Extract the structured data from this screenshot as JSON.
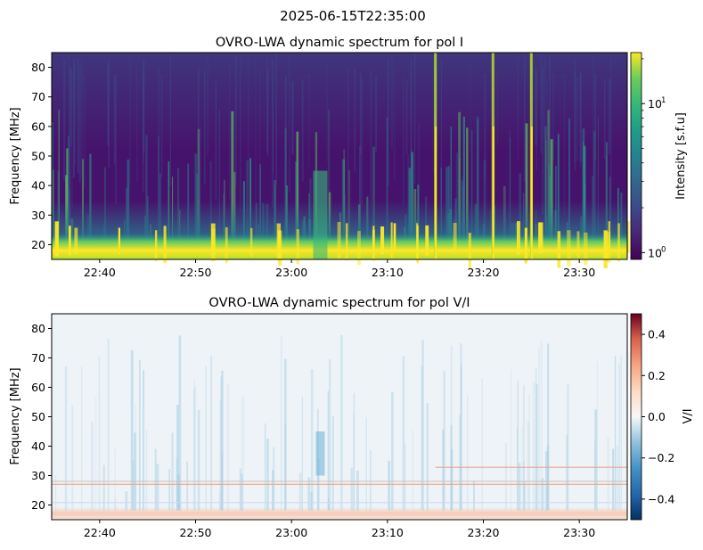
{
  "suptitle": "2025-06-15T22:35:00",
  "chart_data": [
    {
      "type": "heatmap",
      "title": "OVRO-LWA dynamic spectrum for pol I",
      "ylabel": "Frequency [MHz]",
      "xlabel": "",
      "x_range": [
        "22:35",
        "23:35"
      ],
      "x_ticks": [
        "22:40",
        "22:50",
        "23:00",
        "23:10",
        "23:20",
        "23:30"
      ],
      "ylim": [
        15,
        85
      ],
      "y_ticks": [
        20,
        30,
        40,
        50,
        60,
        70,
        80
      ],
      "colorbar": {
        "label": "Intensity [s.f.u]",
        "scale": "log",
        "range": [
          0.9,
          22
        ],
        "ticks": [
          {
            "base": "10",
            "exp": "0"
          },
          {
            "base": "10",
            "exp": "1"
          }
        ],
        "colormap": "viridis"
      },
      "features": {
        "strong_bursts_time": [
          "23:15",
          "23:21",
          "23:25"
        ],
        "burst_cluster_time": "23:03",
        "low_band_bright_MHz": [
          15,
          20
        ]
      }
    },
    {
      "type": "heatmap",
      "title": "OVRO-LWA dynamic spectrum for pol V/I",
      "ylabel": "Frequency [MHz]",
      "xlabel": "",
      "x_range": [
        "22:35",
        "23:35"
      ],
      "x_ticks": [
        "22:40",
        "22:50",
        "23:00",
        "23:10",
        "23:20",
        "23:30"
      ],
      "ylim": [
        15,
        85
      ],
      "y_ticks": [
        20,
        30,
        40,
        50,
        60,
        70,
        80
      ],
      "colorbar": {
        "label": "V/I",
        "scale": "linear",
        "range": [
          -0.5,
          0.5
        ],
        "ticks": [
          "0.4",
          "0.2",
          "0.0",
          "−0.2",
          "−0.4"
        ],
        "tick_values": [
          0.4,
          0.2,
          0.0,
          -0.2,
          -0.4
        ],
        "colormap": "RdBu_r"
      }
    }
  ]
}
